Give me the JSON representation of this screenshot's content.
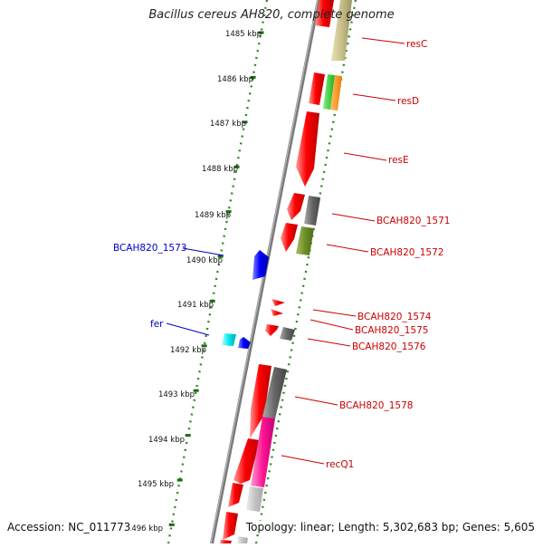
{
  "title": "Bacillus cereus AH820, complete genome",
  "accession": "Accession: NC_011773",
  "summary": "Topology: linear; Length: 5,302,683 bp; Genes: 5,605",
  "colors": {
    "axis": "#888888",
    "ruler": "#3a8a2a",
    "ticks": "#1a6a10",
    "label_forward": "#cc0000",
    "label_reverse": "#0000cc"
  },
  "ruler_ticks": [
    "1485 kbp",
    "1486 kbp",
    "1487 kbp",
    "1488 kbp",
    "1489 kbp",
    "1490 kbp",
    "1491 kbp",
    "1492 kbp",
    "1493 kbp",
    "1494 kbp",
    "1495 kbp",
    "1496 kbp"
  ],
  "gene_labels": [
    {
      "id": "resC",
      "text": "resC",
      "strand": "forward"
    },
    {
      "id": "resD",
      "text": "resD",
      "strand": "forward"
    },
    {
      "id": "resE",
      "text": "resE",
      "strand": "forward"
    },
    {
      "id": "BCAH820_1571",
      "text": "BCAH820_1571",
      "strand": "forward"
    },
    {
      "id": "BCAH820_1572",
      "text": "BCAH820_1572",
      "strand": "forward"
    },
    {
      "id": "BCAH820_1573",
      "text": "BCAH820_1573",
      "strand": "reverse"
    },
    {
      "id": "BCAH820_1574",
      "text": "BCAH820_1574",
      "strand": "forward"
    },
    {
      "id": "BCAH820_1575",
      "text": "BCAH820_1575",
      "strand": "forward"
    },
    {
      "id": "fer",
      "text": "fer",
      "strand": "reverse"
    },
    {
      "id": "BCAH820_1576",
      "text": "BCAH820_1576",
      "strand": "forward"
    },
    {
      "id": "BCAH820_1578",
      "text": "BCAH820_1578",
      "strand": "forward"
    },
    {
      "id": "recQ1",
      "text": "recQ1",
      "strand": "forward"
    }
  ]
}
